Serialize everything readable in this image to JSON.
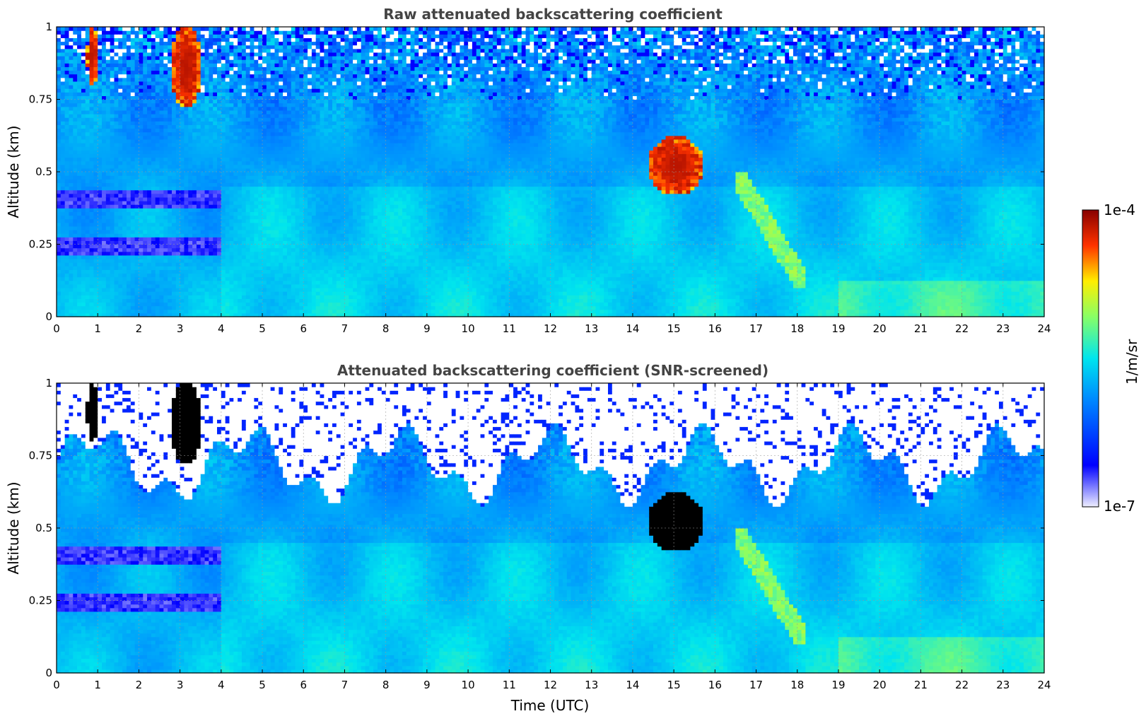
{
  "chart_data": [
    {
      "type": "heatmap",
      "title": "Raw attenuated backscattering coefficient",
      "xlabel": "",
      "ylabel": "Altitude (km)",
      "xlim": [
        0,
        24
      ],
      "ylim": [
        0,
        1
      ],
      "xticks": [
        "0",
        "1",
        "2",
        "3",
        "4",
        "5",
        "6",
        "7",
        "8",
        "9",
        "10",
        "11",
        "12",
        "13",
        "14",
        "15",
        "16",
        "17",
        "18",
        "19",
        "20",
        "21",
        "22",
        "23",
        "24"
      ],
      "yticks": [
        "0",
        "0.25",
        "0.5",
        "0.75",
        "1"
      ],
      "grid": true,
      "screened": false,
      "features": [
        {
          "name": "high-backscatter plume",
          "time_start": 0.75,
          "time_end": 1.0,
          "alt_start": 0.8,
          "alt_end": 1.0,
          "level": "red"
        },
        {
          "name": "high-backscatter plume",
          "time_start": 2.8,
          "time_end": 3.5,
          "alt_start": 0.72,
          "alt_end": 1.0,
          "level": "red"
        },
        {
          "name": "cloud",
          "time_start": 14.4,
          "time_end": 15.7,
          "alt_start": 0.42,
          "alt_end": 0.62,
          "level": "red"
        },
        {
          "name": "descending aerosol layer",
          "time_start": 16.5,
          "time_end": 18.2,
          "alt_start": 0.1,
          "alt_end": 0.5,
          "level": "yellow-green"
        }
      ]
    },
    {
      "type": "heatmap",
      "title": "Attenuated backscattering coefficient (SNR-screened)",
      "xlabel": "Time (UTC)",
      "ylabel": "Altitude (km)",
      "xlim": [
        0,
        24
      ],
      "ylim": [
        0,
        1
      ],
      "xticks": [
        "0",
        "1",
        "2",
        "3",
        "4",
        "5",
        "6",
        "7",
        "8",
        "9",
        "10",
        "11",
        "12",
        "13",
        "14",
        "15",
        "16",
        "17",
        "18",
        "19",
        "20",
        "21",
        "22",
        "23",
        "24"
      ],
      "yticks": [
        "0",
        "0.25",
        "0.5",
        "0.75",
        "1"
      ],
      "grid": true,
      "screened": true,
      "features": [
        {
          "name": "saturated plume",
          "time_start": 0.75,
          "time_end": 1.0,
          "alt_start": 0.8,
          "alt_end": 1.0,
          "level": "black"
        },
        {
          "name": "saturated plume",
          "time_start": 2.8,
          "time_end": 3.5,
          "alt_start": 0.72,
          "alt_end": 1.0,
          "level": "black"
        },
        {
          "name": "cloud",
          "time_start": 14.4,
          "time_end": 15.7,
          "alt_start": 0.42,
          "alt_end": 0.62,
          "level": "black"
        },
        {
          "name": "descending aerosol layer",
          "time_start": 16.5,
          "time_end": 18.2,
          "alt_start": 0.1,
          "alt_end": 0.5,
          "level": "yellow-green"
        }
      ]
    }
  ],
  "colorbar": {
    "label": "1/m/sr",
    "max_label": "1e-4",
    "min_label": "1e-7",
    "min": 1e-07,
    "max": 0.0001,
    "scale": "log",
    "colormap": "jet"
  }
}
